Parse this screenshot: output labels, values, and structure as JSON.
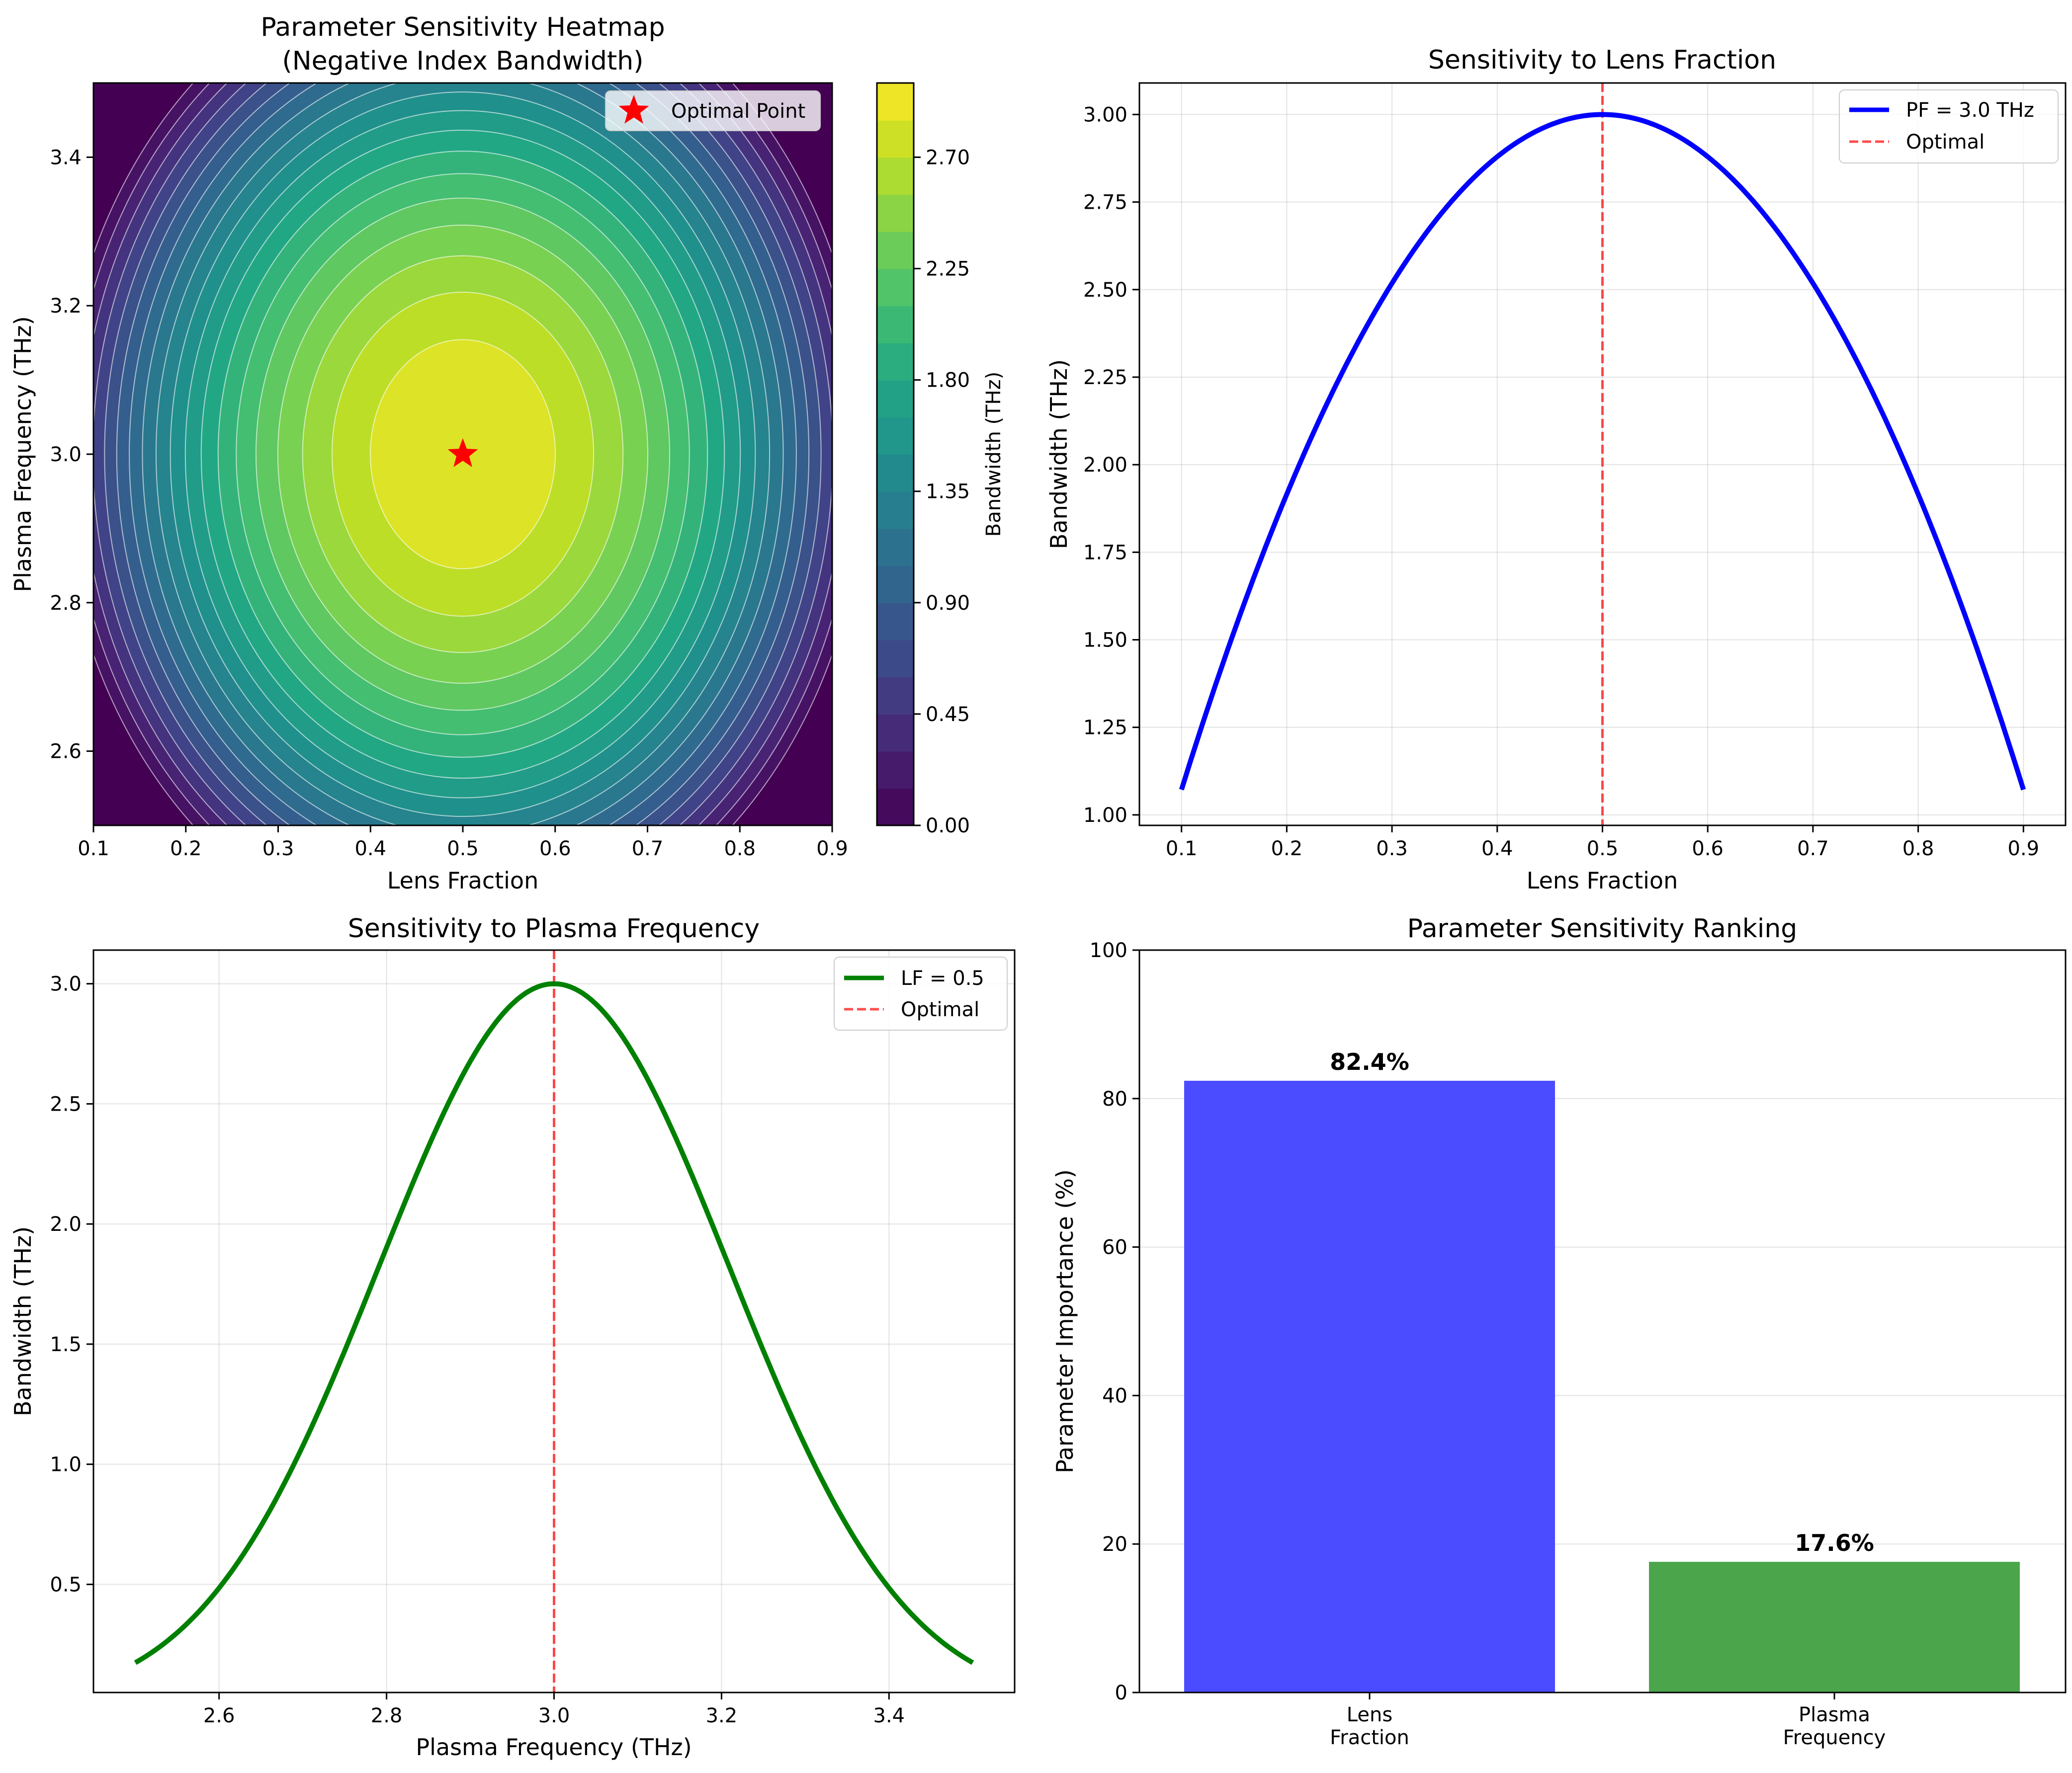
{
  "chart_data": [
    {
      "type": "heatmap",
      "title": "Parameter Sensitivity Heatmap\n(Negative Index Bandwidth)",
      "xlabel": "Lens Fraction",
      "ylabel": "Plasma Frequency (THz)",
      "xlim": [
        0.1,
        0.9
      ],
      "ylim": [
        2.5,
        3.5
      ],
      "xticks": [
        "0.1",
        "0.2",
        "0.3",
        "0.4",
        "0.5",
        "0.6",
        "0.7",
        "0.8",
        "0.9"
      ],
      "yticks": [
        "2.6",
        "2.8",
        "3.0",
        "3.2",
        "3.4"
      ],
      "function": "bandwidth = 3.0 * (1 - ((LF - 0.5)/0.5)^2 * 0.64...) ; peak 3.0 THz at LF=0.5, PF=3.0",
      "peak": {
        "lens_fraction": 0.5,
        "plasma_frequency": 3.0,
        "bandwidth": 3.0
      },
      "levels": 20,
      "colorbar": {
        "label": "Bandwidth (THz)",
        "range": [
          0.0,
          3.0
        ],
        "ticks": [
          "0.00",
          "0.45",
          "0.90",
          "1.35",
          "1.80",
          "2.25",
          "2.70"
        ]
      },
      "legend": {
        "entries": [
          "Optimal Point"
        ],
        "placement": "upper right"
      },
      "marker": {
        "name": "Optimal Point",
        "x": 0.5,
        "y": 3.0,
        "color": "#ff0000"
      }
    },
    {
      "type": "line",
      "title": "Sensitivity to Lens Fraction",
      "xlabel": "Lens Fraction",
      "ylabel": "Bandwidth (THz)",
      "xlim": [
        0.06,
        0.94
      ],
      "ylim": [
        0.97,
        3.09
      ],
      "xticks": [
        "0.1",
        "0.2",
        "0.3",
        "0.4",
        "0.5",
        "0.6",
        "0.7",
        "0.8",
        "0.9"
      ],
      "yticks": [
        "1.00",
        "1.25",
        "1.50",
        "1.75",
        "2.00",
        "2.25",
        "2.50",
        "2.75",
        "3.00"
      ],
      "grid": true,
      "series": [
        {
          "name": "PF = 3.0 THz",
          "color": "#0000ff",
          "model": "y = 3 - 7.8*(x - 0.5)^2",
          "x_range": [
            0.1,
            0.9
          ],
          "points": 50
        }
      ],
      "vline": {
        "name": "Optimal",
        "x": 0.5,
        "color": "#ff0000"
      },
      "legend": {
        "entries": [
          "PF = 3.0 THz",
          "Optimal"
        ],
        "placement": "upper right"
      }
    },
    {
      "type": "line",
      "title": "Sensitivity to Plasma Frequency",
      "xlabel": "Plasma Frequency (THz)",
      "ylabel": "Bandwidth (THz)",
      "xlim": [
        2.45,
        3.55
      ],
      "ylim": [
        0.05,
        3.14
      ],
      "xticks": [
        "2.6",
        "2.8",
        "3.0",
        "3.2",
        "3.4"
      ],
      "yticks": [
        "0.5",
        "1.0",
        "1.5",
        "2.0",
        "2.5",
        "3.0"
      ],
      "grid": true,
      "series": [
        {
          "name": "LF = 0.5",
          "color": "#008000",
          "model": "y = 3 * exp(-(x - 3)^2 / 0.08)",
          "x_range": [
            2.5,
            3.5
          ],
          "points": 50
        }
      ],
      "vline": {
        "name": "Optimal",
        "x": 3.0,
        "color": "#ff0000"
      },
      "legend": {
        "entries": [
          "LF = 0.5",
          "Optimal"
        ],
        "placement": "upper right"
      }
    },
    {
      "type": "bar",
      "title": "Parameter Sensitivity Ranking",
      "xlabel": "",
      "ylabel": "Parameter Importance (%)",
      "ylim": [
        0,
        100
      ],
      "yticks": [
        "0",
        "20",
        "40",
        "60",
        "80",
        "100"
      ],
      "grid": true,
      "categories": [
        "Lens\nFraction",
        "Plasma\nFrequency"
      ],
      "values": [
        82.4,
        17.6
      ],
      "value_labels": [
        "82.4%",
        "17.6%"
      ],
      "colors": [
        "#4b4bff",
        "#4ba64b"
      ]
    }
  ]
}
